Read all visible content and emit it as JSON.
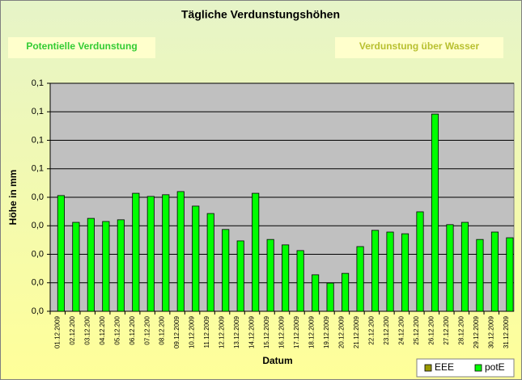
{
  "chart_data": {
    "type": "bar",
    "title": "Tägliche Verdunstungshöhen",
    "annotations": [
      "Potentielle Verdunstung",
      "Verdunstung über Wasser"
    ],
    "y_label": "Höhe in mm",
    "x_label": "Datum",
    "categories": [
      "01.12.2009",
      "02.12.200",
      "03.12.200",
      "04.12.200",
      "05.12.200",
      "06.12.200",
      "07.12.200",
      "08.12.200",
      "09.12.2009",
      "10.12.2009",
      "11.12.2009",
      "12.12.2009",
      "13.12.2009",
      "14.12.2009",
      "15.12.2009",
      "16.12.2009",
      "17.12.2009",
      "18.12.2009",
      "19.12.2009",
      "20.12.2009",
      "21.12.2009",
      "22.12.200",
      "23.12.200",
      "24.12.200",
      "25.12.200",
      "26.12.200",
      "27.12.200",
      "28.12.200",
      "29.12.2009",
      "30.12.2009",
      "31.12.2009"
    ],
    "series": [
      {
        "name": "EEE",
        "color": "#999900",
        "values": [
          null,
          null,
          null,
          null,
          null,
          null,
          null,
          null,
          null,
          null,
          null,
          null,
          null,
          null,
          null,
          null,
          null,
          null,
          null,
          null,
          null,
          null,
          null,
          null,
          null,
          null,
          null,
          null,
          null,
          null,
          null
        ]
      },
      {
        "name": "potE",
        "color": "#00ff00",
        "values": [
          0.0406,
          0.0312,
          0.0326,
          0.0315,
          0.0321,
          0.0414,
          0.0403,
          0.0409,
          0.042,
          0.0369,
          0.0343,
          0.0287,
          0.0247,
          0.0414,
          0.0252,
          0.0233,
          0.0213,
          0.0128,
          0.0099,
          0.0133,
          0.0227,
          0.0284,
          0.0278,
          0.0272,
          0.0349,
          0.0692,
          0.0304,
          0.0312,
          0.0252,
          0.0278,
          0.0258
        ]
      }
    ],
    "ylim": [
      0,
      0.08
    ],
    "yticks": [
      {
        "value": 0,
        "label": "0,0"
      },
      {
        "value": 0.01,
        "label": "0,0"
      },
      {
        "value": 0.02,
        "label": "0,0"
      },
      {
        "value": 0.03,
        "label": "0,0"
      },
      {
        "value": 0.04,
        "label": "0,0"
      },
      {
        "value": 0.05,
        "label": "0,1"
      },
      {
        "value": 0.06,
        "label": "0,1"
      },
      {
        "value": 0.07,
        "label": "0,1"
      },
      {
        "value": 0.08,
        "label": "0,1"
      }
    ],
    "grid": true,
    "legend": "bottom-right"
  }
}
